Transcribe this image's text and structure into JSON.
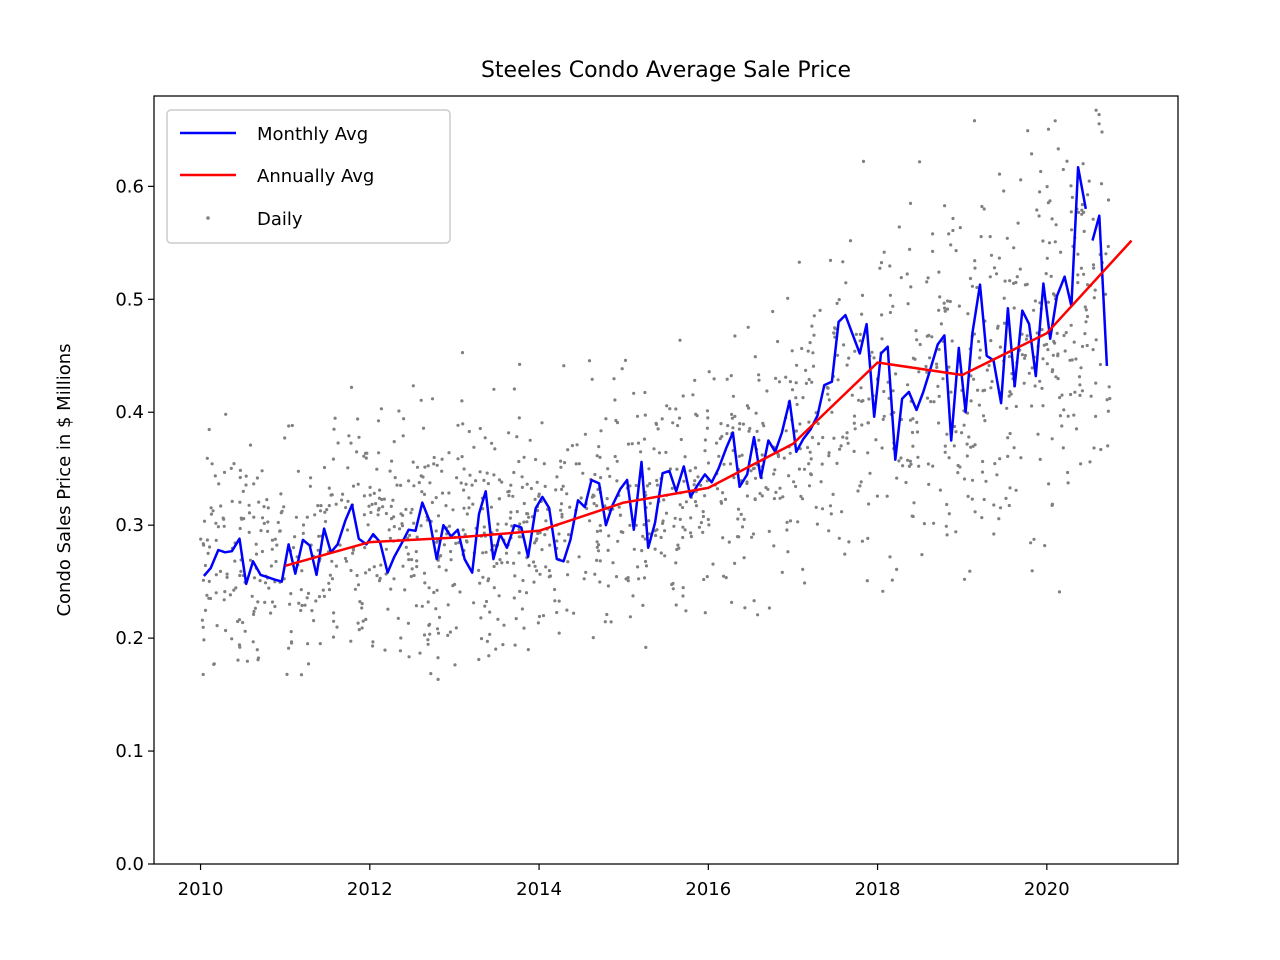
{
  "chart_data": {
    "type": "line",
    "title": "Steeles Condo Average Sale Price",
    "xlabel": "",
    "ylabel": "Condo Sales Price in $ Millions",
    "xlim": [
      2009.45,
      2021.55
    ],
    "ylim": [
      0.0,
      0.68
    ],
    "xticks": [
      2010,
      2012,
      2014,
      2016,
      2018,
      2020
    ],
    "xtick_labels": [
      "2010",
      "2012",
      "2014",
      "2016",
      "2018",
      "2020"
    ],
    "yticks": [
      0.0,
      0.1,
      0.2,
      0.3,
      0.4,
      0.5,
      0.6
    ],
    "ytick_labels": [
      "0.0",
      "0.1",
      "0.2",
      "0.3",
      "0.4",
      "0.5",
      "0.6"
    ],
    "grid": false,
    "legend_position": "top-left",
    "legend": [
      "Monthly Avg",
      "Annually Avg",
      "Daily"
    ],
    "series": [
      {
        "name": "Monthly Avg",
        "kind": "line",
        "color": "#0000ff",
        "segments": [
          [
            [
              2010.04,
              0.255
            ],
            [
              2010.12,
              0.262
            ],
            [
              2010.21,
              0.278
            ],
            [
              2010.29,
              0.276
            ],
            [
              2010.37,
              0.277
            ],
            [
              2010.46,
              0.288
            ],
            [
              2010.54,
              0.248
            ],
            [
              2010.62,
              0.268
            ],
            [
              2010.71,
              0.256
            ],
            [
              2010.79,
              0.254
            ],
            [
              2010.87,
              0.252
            ],
            [
              2010.96,
              0.25
            ],
            [
              2011.04,
              0.283
            ],
            [
              2011.12,
              0.257
            ],
            [
              2011.21,
              0.287
            ],
            [
              2011.29,
              0.282
            ],
            [
              2011.37,
              0.256
            ],
            [
              2011.46,
              0.297
            ],
            [
              2011.54,
              0.276
            ],
            [
              2011.62,
              0.283
            ],
            [
              2011.71,
              0.304
            ],
            [
              2011.79,
              0.318
            ],
            [
              2011.87,
              0.288
            ],
            [
              2011.96,
              0.283
            ],
            [
              2012.04,
              0.292
            ],
            [
              2012.12,
              0.285
            ],
            [
              2012.21,
              0.258
            ],
            [
              2012.29,
              0.272
            ],
            [
              2012.37,
              0.283
            ],
            [
              2012.46,
              0.296
            ],
            [
              2012.54,
              0.295
            ],
            [
              2012.62,
              0.32
            ],
            [
              2012.71,
              0.303
            ],
            [
              2012.79,
              0.27
            ],
            [
              2012.87,
              0.3
            ],
            [
              2012.96,
              0.29
            ],
            [
              2013.04,
              0.296
            ],
            [
              2013.12,
              0.27
            ],
            [
              2013.21,
              0.258
            ],
            [
              2013.29,
              0.31
            ],
            [
              2013.37,
              0.33
            ],
            [
              2013.46,
              0.27
            ],
            [
              2013.54,
              0.292
            ],
            [
              2013.62,
              0.28
            ],
            [
              2013.71,
              0.3
            ],
            [
              2013.79,
              0.298
            ],
            [
              2013.87,
              0.272
            ],
            [
              2013.96,
              0.315
            ],
            [
              2014.04,
              0.325
            ],
            [
              2014.12,
              0.315
            ],
            [
              2014.21,
              0.27
            ],
            [
              2014.29,
              0.268
            ],
            [
              2014.37,
              0.287
            ],
            [
              2014.46,
              0.322
            ],
            [
              2014.54,
              0.316
            ],
            [
              2014.62,
              0.34
            ],
            [
              2014.71,
              0.337
            ],
            [
              2014.79,
              0.3
            ],
            [
              2014.87,
              0.318
            ],
            [
              2014.96,
              0.332
            ],
            [
              2015.04,
              0.34
            ],
            [
              2015.12,
              0.296
            ],
            [
              2015.21,
              0.356
            ],
            [
              2015.29,
              0.28
            ],
            [
              2015.37,
              0.302
            ],
            [
              2015.46,
              0.346
            ],
            [
              2015.54,
              0.348
            ],
            [
              2015.62,
              0.33
            ],
            [
              2015.71,
              0.352
            ],
            [
              2015.79,
              0.325
            ],
            [
              2015.87,
              0.335
            ],
            [
              2015.96,
              0.345
            ],
            [
              2016.04,
              0.338
            ],
            [
              2016.12,
              0.35
            ],
            [
              2016.21,
              0.368
            ],
            [
              2016.29,
              0.382
            ],
            [
              2016.37,
              0.334
            ],
            [
              2016.46,
              0.345
            ],
            [
              2016.54,
              0.378
            ],
            [
              2016.62,
              0.342
            ],
            [
              2016.71,
              0.375
            ],
            [
              2016.79,
              0.365
            ],
            [
              2016.87,
              0.382
            ],
            [
              2016.96,
              0.41
            ],
            [
              2017.04,
              0.365
            ],
            [
              2017.12,
              0.376
            ],
            [
              2017.21,
              0.385
            ],
            [
              2017.29,
              0.397
            ],
            [
              2017.37,
              0.424
            ],
            [
              2017.46,
              0.427
            ],
            [
              2017.54,
              0.48
            ],
            [
              2017.62,
              0.486
            ],
            [
              2017.71,
              0.468
            ],
            [
              2017.79,
              0.452
            ],
            [
              2017.87,
              0.478
            ],
            [
              2017.96,
              0.396
            ],
            [
              2018.04,
              0.452
            ],
            [
              2018.12,
              0.458
            ],
            [
              2018.21,
              0.358
            ],
            [
              2018.29,
              0.412
            ],
            [
              2018.37,
              0.418
            ],
            [
              2018.46,
              0.402
            ],
            [
              2018.54,
              0.418
            ],
            [
              2018.62,
              0.437
            ],
            [
              2018.71,
              0.46
            ],
            [
              2018.79,
              0.468
            ],
            [
              2018.87,
              0.375
            ],
            [
              2018.96,
              0.457
            ],
            [
              2019.04,
              0.4
            ],
            [
              2019.12,
              0.47
            ],
            [
              2019.21,
              0.513
            ],
            [
              2019.29,
              0.45
            ],
            [
              2019.37,
              0.446
            ],
            [
              2019.46,
              0.408
            ],
            [
              2019.54,
              0.492
            ],
            [
              2019.62,
              0.423
            ],
            [
              2019.71,
              0.49
            ],
            [
              2019.79,
              0.478
            ],
            [
              2019.87,
              0.432
            ],
            [
              2019.96,
              0.514
            ],
            [
              2020.04,
              0.465
            ],
            [
              2020.12,
              0.503
            ],
            [
              2020.21,
              0.52
            ],
            [
              2020.29,
              0.494
            ],
            [
              2020.37,
              0.617
            ],
            [
              2020.46,
              0.58
            ]
          ],
          [
            [
              2020.54,
              0.552
            ],
            [
              2020.62,
              0.574
            ],
            [
              2020.71,
              0.441
            ]
          ]
        ]
      },
      {
        "name": "Annually Avg",
        "kind": "line",
        "color": "#ff0000",
        "x": [
          2011,
          2012,
          2013,
          2014,
          2015,
          2016,
          2017,
          2018,
          2019,
          2020,
          2021
        ],
        "values": [
          0.264,
          0.285,
          0.289,
          0.295,
          0.32,
          0.333,
          0.372,
          0.444,
          0.433,
          0.47,
          0.552
        ]
      },
      {
        "name": "Daily",
        "kind": "scatter",
        "color": "#808080",
        "trend_segments": [
          [
            2010.0,
            0.258
          ],
          [
            2012.0,
            0.285
          ],
          [
            2014.0,
            0.298
          ],
          [
            2016.0,
            0.335
          ],
          [
            2017.0,
            0.37
          ],
          [
            2018.0,
            0.43
          ],
          [
            2019.0,
            0.44
          ],
          [
            2020.0,
            0.48
          ],
          [
            2020.75,
            0.51
          ]
        ],
        "spread": 0.055,
        "count": 1500
      }
    ]
  }
}
